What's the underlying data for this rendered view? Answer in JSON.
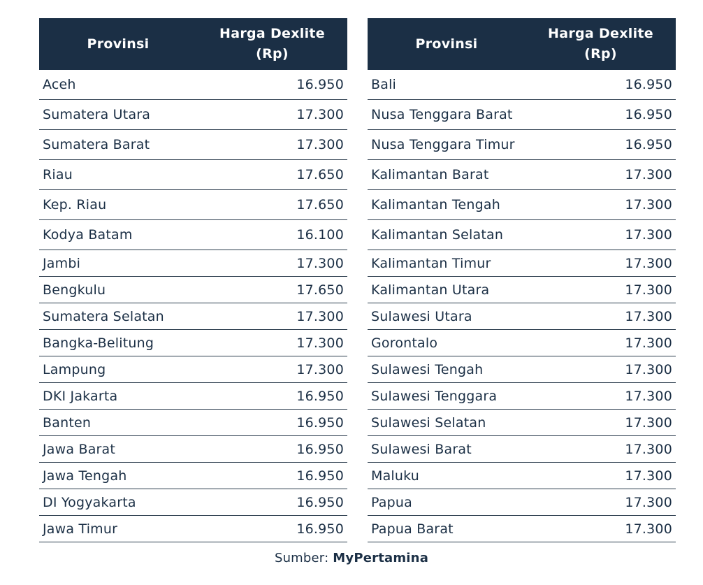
{
  "header": {
    "province": "Provinsi",
    "price_line1": "Harga Dexlite",
    "price_line2": "(Rp)"
  },
  "left_rows": [
    {
      "province": "Aceh",
      "price": "16.950"
    },
    {
      "province": "Sumatera Utara",
      "price": "17.300"
    },
    {
      "province": "Sumatera Barat",
      "price": "17.300"
    },
    {
      "province": "Riau",
      "price": "17.650"
    },
    {
      "province": "Kep. Riau",
      "price": "17.650"
    },
    {
      "province": "Kodya Batam",
      "price": "16.100"
    },
    {
      "province": "Jambi",
      "price": "17.300"
    },
    {
      "province": "Bengkulu",
      "price": "17.650"
    },
    {
      "province": "Sumatera Selatan",
      "price": "17.300"
    },
    {
      "province": "Bangka-Belitung",
      "price": "17.300"
    },
    {
      "province": "Lampung",
      "price": "17.300"
    },
    {
      "province": "DKI Jakarta",
      "price": "16.950"
    },
    {
      "province": "Banten",
      "price": "16.950"
    },
    {
      "province": "Jawa Barat",
      "price": "16.950"
    },
    {
      "province": "Jawa Tengah",
      "price": "16.950"
    },
    {
      "province": "DI Yogyakarta",
      "price": "16.950"
    },
    {
      "province": "Jawa Timur",
      "price": "16.950"
    }
  ],
  "right_rows": [
    {
      "province": "Bali",
      "price": "16.950"
    },
    {
      "province": "Nusa Tenggara Barat",
      "price": "16.950"
    },
    {
      "province": "Nusa Tenggara Timur",
      "price": "16.950"
    },
    {
      "province": "Kalimantan Barat",
      "price": "17.300"
    },
    {
      "province": "Kalimantan Tengah",
      "price": "17.300"
    },
    {
      "province": "Kalimantan Selatan",
      "price": "17.300"
    },
    {
      "province": "Kalimantan Timur",
      "price": "17.300"
    },
    {
      "province": "Kalimantan Utara",
      "price": "17.300"
    },
    {
      "province": "Sulawesi Utara",
      "price": "17.300"
    },
    {
      "province": "Gorontalo",
      "price": "17.300"
    },
    {
      "province": "Sulawesi Tengah",
      "price": "17.300"
    },
    {
      "province": "Sulawesi Tenggara",
      "price": "17.300"
    },
    {
      "province": "Sulawesi Selatan",
      "price": "17.300"
    },
    {
      "province": "Sulawesi Barat",
      "price": "17.300"
    },
    {
      "province": "Maluku",
      "price": "17.300"
    },
    {
      "province": "Papua",
      "price": "17.300"
    },
    {
      "province": "Papua Barat",
      "price": "17.300"
    }
  ],
  "source": {
    "label": "Sumber: ",
    "name": "MyPertamina"
  },
  "colors": {
    "header_bg": "#1b2f45",
    "header_text": "#ffffff",
    "body_text": "#1b2f45"
  }
}
